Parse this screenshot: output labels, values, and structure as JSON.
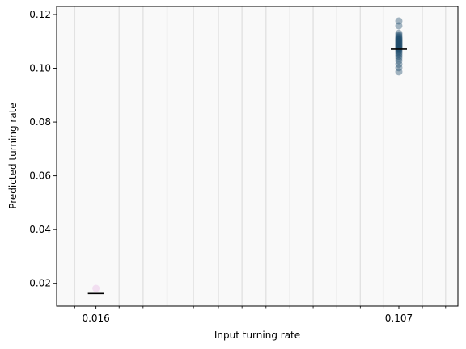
{
  "chart_data": {
    "type": "scatter",
    "title": "",
    "xlabel": "Input turning rate",
    "ylabel": "Predicted turning rate",
    "x_scale": "log",
    "xlim": [
      0.0125,
      0.155
    ],
    "ylim": [
      0.0115,
      0.123
    ],
    "x_ticks": [
      {
        "value": 0.016,
        "label": "0.016"
      },
      {
        "value": 0.107,
        "label": "0.107"
      }
    ],
    "x_minor_ticks": [
      0.014,
      0.0185,
      0.0215,
      0.025,
      0.0295,
      0.0345,
      0.04,
      0.0465,
      0.054,
      0.0625,
      0.0725,
      0.084,
      0.097,
      0.124,
      0.1435
    ],
    "y_ticks": [
      {
        "value": 0.02,
        "label": "0.02"
      },
      {
        "value": 0.04,
        "label": "0.04"
      },
      {
        "value": 0.06,
        "label": "0.06"
      },
      {
        "value": 0.08,
        "label": "0.08"
      },
      {
        "value": 0.1,
        "label": "0.10"
      },
      {
        "value": 0.12,
        "label": "0.12"
      }
    ],
    "grid": {
      "vertical": true,
      "horizontal": false
    },
    "background_color": "#f9f9f9",
    "series": [
      {
        "color": "#e9b8e6",
        "x": [
          0.016
        ],
        "y": [
          0.0181
        ],
        "mean": 0.0162
      },
      {
        "color": "#1f4a6b",
        "x": [
          0.107,
          0.107,
          0.107,
          0.107,
          0.107,
          0.107,
          0.107,
          0.107,
          0.107,
          0.107,
          0.107,
          0.107,
          0.107,
          0.107,
          0.107,
          0.107,
          0.107,
          0.107,
          0.107,
          0.107,
          0.107,
          0.107,
          0.107,
          0.107,
          0.107,
          0.107,
          0.107,
          0.107,
          0.107,
          0.107
        ],
        "y": [
          0.0987,
          0.1002,
          0.1015,
          0.1028,
          0.1038,
          0.1045,
          0.1052,
          0.1058,
          0.1063,
          0.1068,
          0.1072,
          0.1075,
          0.1078,
          0.1081,
          0.1084,
          0.1087,
          0.109,
          0.1093,
          0.1096,
          0.1099,
          0.1102,
          0.1105,
          0.1108,
          0.1111,
          0.1115,
          0.1119,
          0.1124,
          0.113,
          0.1158,
          0.1176
        ],
        "mean": 0.1071
      }
    ]
  }
}
